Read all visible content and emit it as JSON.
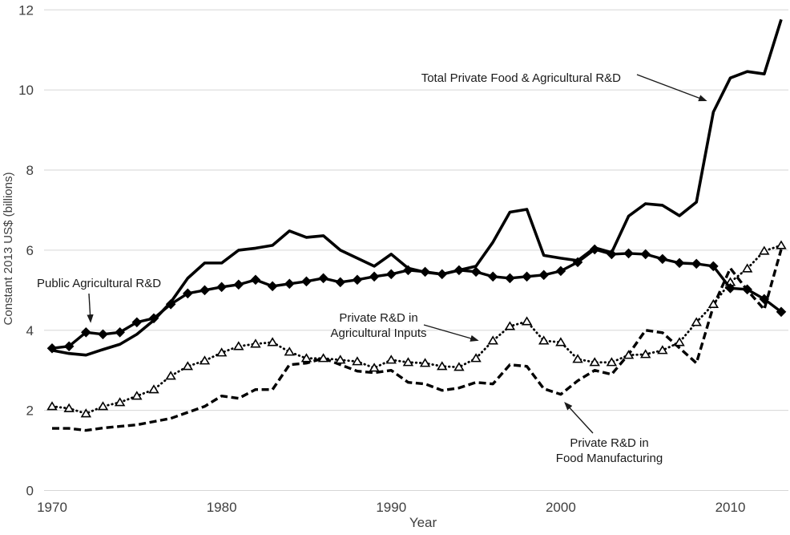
{
  "figure": {
    "background": "#ffffff",
    "gridline_color": "#d6d6d6",
    "series_color": "#000000",
    "tick_text_color": "#3f3f3f",
    "annotation_text_color": "#1a1a1a"
  },
  "annotations": {
    "total": {
      "text": "Total Private Food & Agricultural R&D"
    },
    "public": {
      "text": "Public Agricultural R&D"
    },
    "inputs": {
      "line1": "Private R&D in",
      "line2": "Agricultural Inputs"
    },
    "food": {
      "line1": "Private R&D in",
      "line2": "Food Manufacturing"
    }
  },
  "chart_data": {
    "type": "line",
    "title": "",
    "grid": "horizontal",
    "legend": "none — series identified by in-plot text labels with arrows",
    "x_axis": {
      "label": "Year",
      "ticks": [
        1970,
        1980,
        1990,
        2000,
        2010
      ],
      "range": [
        1970,
        2013
      ]
    },
    "y_axis": {
      "label": "Constant 2013 US$ (billions)",
      "ticks": [
        0,
        2,
        4,
        6,
        8,
        10,
        12
      ],
      "range": [
        0,
        12
      ]
    },
    "x": [
      1970,
      1971,
      1972,
      1973,
      1974,
      1975,
      1976,
      1977,
      1978,
      1979,
      1980,
      1981,
      1982,
      1983,
      1984,
      1985,
      1986,
      1987,
      1988,
      1989,
      1990,
      1991,
      1992,
      1993,
      1994,
      1995,
      1996,
      1997,
      1998,
      1999,
      2000,
      2001,
      2002,
      2003,
      2004,
      2005,
      2006,
      2007,
      2008,
      2009,
      2010,
      2011,
      2012,
      2013
    ],
    "series": [
      {
        "name": "Total Private Food & Agricultural R&D",
        "line_style": "solid-thick",
        "marker": "none",
        "color": "#000000",
        "values": [
          3.5,
          3.42,
          3.38,
          3.52,
          3.65,
          3.9,
          4.25,
          4.7,
          5.3,
          5.68,
          5.68,
          6.0,
          6.05,
          6.12,
          6.48,
          6.32,
          6.36,
          6.0,
          5.8,
          5.6,
          5.9,
          5.55,
          5.45,
          5.4,
          5.5,
          5.6,
          6.2,
          6.95,
          7.02,
          5.87,
          5.8,
          5.74,
          6.06,
          5.94,
          6.85,
          7.16,
          7.12,
          6.86,
          7.2,
          9.45,
          10.3,
          10.46,
          10.4,
          11.76
        ]
      },
      {
        "name": "Public Agricultural R&D",
        "line_style": "solid",
        "marker": "filled-diamond",
        "color": "#000000",
        "values": [
          3.55,
          3.6,
          3.95,
          3.9,
          3.95,
          4.2,
          4.3,
          4.65,
          4.92,
          5.0,
          5.08,
          5.14,
          5.26,
          5.1,
          5.16,
          5.22,
          5.3,
          5.2,
          5.26,
          5.34,
          5.4,
          5.5,
          5.46,
          5.4,
          5.5,
          5.46,
          5.34,
          5.3,
          5.34,
          5.38,
          5.48,
          5.7,
          6.02,
          5.9,
          5.92,
          5.9,
          5.78,
          5.68,
          5.66,
          5.6,
          5.05,
          5.02,
          4.78,
          4.46
        ]
      },
      {
        "name": "Private R&D in Agricultural Inputs",
        "line_style": "dotted",
        "marker": "open-triangle",
        "color": "#000000",
        "values": [
          2.1,
          2.05,
          1.92,
          2.1,
          2.2,
          2.36,
          2.52,
          2.86,
          3.1,
          3.24,
          3.44,
          3.6,
          3.66,
          3.7,
          3.46,
          3.3,
          3.3,
          3.26,
          3.22,
          3.06,
          3.26,
          3.2,
          3.18,
          3.1,
          3.08,
          3.3,
          3.74,
          4.1,
          4.22,
          3.74,
          3.7,
          3.28,
          3.2,
          3.2,
          3.38,
          3.4,
          3.5,
          3.7,
          4.2,
          4.65,
          5.2,
          5.54,
          5.98,
          6.12
        ]
      },
      {
        "name": "Private R&D in Food Manufacturing",
        "line_style": "dashed",
        "marker": "none",
        "color": "#000000",
        "values": [
          1.55,
          1.55,
          1.5,
          1.56,
          1.6,
          1.64,
          1.72,
          1.8,
          1.95,
          2.1,
          2.36,
          2.3,
          2.52,
          2.52,
          3.14,
          3.18,
          3.3,
          3.14,
          2.98,
          2.94,
          3.0,
          2.7,
          2.66,
          2.5,
          2.56,
          2.7,
          2.66,
          3.14,
          3.1,
          2.54,
          2.4,
          2.74,
          3.0,
          2.9,
          3.4,
          4.0,
          3.94,
          3.56,
          3.18,
          4.6,
          5.55,
          5.0,
          4.52,
          6.02
        ]
      }
    ]
  }
}
